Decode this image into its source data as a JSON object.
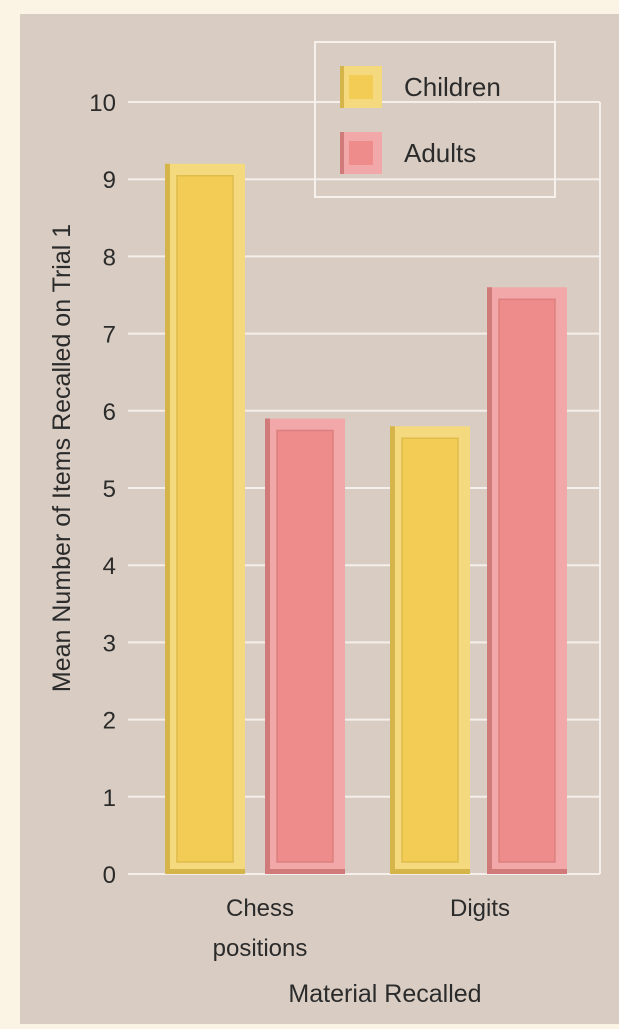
{
  "chart_data": {
    "type": "bar",
    "categories": [
      "Chess positions",
      "Digits"
    ],
    "category_lines": [
      [
        "Chess",
        "positions"
      ],
      [
        "Digits"
      ]
    ],
    "series": [
      {
        "name": "Children",
        "values": [
          9.2,
          5.8
        ],
        "color": "#f2cc54"
      },
      {
        "name": "Adults",
        "values": [
          5.9,
          7.6
        ],
        "color": "#ee8b8b"
      }
    ],
    "title": "",
    "xlabel": "Material Recalled",
    "ylabel": "Mean Number of Items Recalled on Trial 1",
    "ylim": [
      0,
      10
    ],
    "yticks": [
      "0",
      "1",
      "2",
      "3",
      "4",
      "5",
      "6",
      "7",
      "8",
      "9",
      "10"
    ],
    "grid": true,
    "legend_position": "top-right"
  },
  "colors": {
    "page_background": "#fbf4e4",
    "plot_background": "#d9cdc3",
    "gridline": "#f4efea",
    "children": "#f2cc54",
    "adults": "#ee8b8b"
  }
}
